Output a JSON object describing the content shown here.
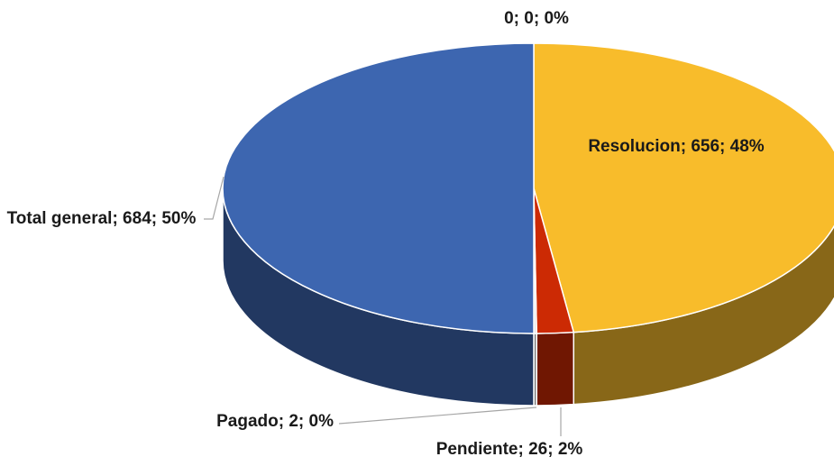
{
  "chart_data": {
    "type": "pie3d",
    "categories": [
      null,
      "Resolucion",
      "Pendiente",
      "Pagado",
      "Total general"
    ],
    "values": [
      0,
      656,
      26,
      2,
      684
    ],
    "value_labels": [
      "0; 0; 0%",
      "Resolucion; 656; 48%",
      "Pendiente; 26; 2%",
      "Pagado; 2; 0%",
      "Total general; 684; 50%"
    ],
    "colors": [
      "#a5a5a5",
      "#f8bc2b",
      "#cc2a04",
      "#e6e6e6",
      "#3d66b0"
    ]
  }
}
